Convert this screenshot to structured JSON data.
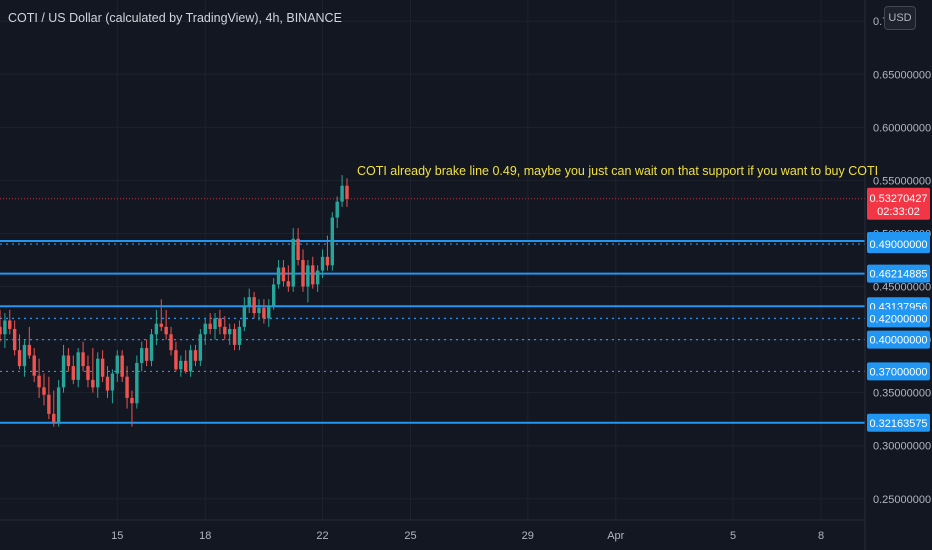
{
  "header": {
    "title": "COTI / US Dollar (calculated by TradingView), 4h, BINANCE",
    "currency": "USD"
  },
  "colors": {
    "background": "#131722",
    "up": "#26a69a",
    "down": "#ef5350",
    "level_line": "#2196f3",
    "note": "#f0e040",
    "grid": "#1e222d",
    "last_price": "#f23645"
  },
  "chart_data": {
    "type": "candlestick",
    "title": "COTI / US Dollar (calculated by TradingView), 4h, BINANCE",
    "yaxis_side": "right",
    "ylim": [
      0.23,
      0.72
    ],
    "y_ticks": [
      0.25,
      0.3,
      0.35,
      0.4,
      0.45,
      0.5,
      0.55,
      0.6,
      0.65,
      0.7
    ],
    "y_tick_labels": [
      "0.25000000",
      "0.30000000",
      "0.35000000",
      "0.40000000",
      "0.45000000",
      "0.50000000",
      "0.55000000",
      "0.60000000",
      "0.65000000",
      "0.7"
    ],
    "x_ticks": [
      {
        "date": "2021-03-15",
        "label": "15"
      },
      {
        "date": "2021-03-18",
        "label": "18"
      },
      {
        "date": "2021-03-22",
        "label": "22"
      },
      {
        "date": "2021-03-25",
        "label": "25"
      },
      {
        "date": "2021-03-29",
        "label": "29"
      },
      {
        "date": "2021-04-01",
        "label": "Apr"
      },
      {
        "date": "2021-04-05",
        "label": "5"
      },
      {
        "date": "2021-04-08",
        "label": "8"
      }
    ],
    "xlim": [
      "2021-03-11 00:00",
      "2021-04-09 12:00"
    ],
    "grid": true,
    "candles": [
      {
        "t": "2021-03-11 00:00",
        "o": 0.412,
        "h": 0.428,
        "l": 0.398,
        "c": 0.405
      },
      {
        "t": "2021-03-11 04:00",
        "o": 0.405,
        "h": 0.425,
        "l": 0.392,
        "c": 0.418
      },
      {
        "t": "2021-03-11 08:00",
        "o": 0.418,
        "h": 0.428,
        "l": 0.405,
        "c": 0.41
      },
      {
        "t": "2021-03-11 12:00",
        "o": 0.41,
        "h": 0.418,
        "l": 0.385,
        "c": 0.39
      },
      {
        "t": "2021-03-11 16:00",
        "o": 0.39,
        "h": 0.405,
        "l": 0.372,
        "c": 0.375
      },
      {
        "t": "2021-03-11 20:00",
        "o": 0.375,
        "h": 0.4,
        "l": 0.365,
        "c": 0.395
      },
      {
        "t": "2021-03-12 00:00",
        "o": 0.395,
        "h": 0.412,
        "l": 0.382,
        "c": 0.385
      },
      {
        "t": "2021-03-12 04:00",
        "o": 0.385,
        "h": 0.392,
        "l": 0.36,
        "c": 0.366
      },
      {
        "t": "2021-03-12 08:00",
        "o": 0.366,
        "h": 0.382,
        "l": 0.345,
        "c": 0.355
      },
      {
        "t": "2021-03-12 12:00",
        "o": 0.355,
        "h": 0.368,
        "l": 0.338,
        "c": 0.348
      },
      {
        "t": "2021-03-12 16:00",
        "o": 0.348,
        "h": 0.365,
        "l": 0.325,
        "c": 0.33
      },
      {
        "t": "2021-03-12 20:00",
        "o": 0.33,
        "h": 0.352,
        "l": 0.318,
        "c": 0.322
      },
      {
        "t": "2021-03-13 00:00",
        "o": 0.322,
        "h": 0.362,
        "l": 0.318,
        "c": 0.355
      },
      {
        "t": "2021-03-13 04:00",
        "o": 0.355,
        "h": 0.395,
        "l": 0.35,
        "c": 0.385
      },
      {
        "t": "2021-03-13 08:00",
        "o": 0.385,
        "h": 0.392,
        "l": 0.37,
        "c": 0.375
      },
      {
        "t": "2021-03-13 12:00",
        "o": 0.375,
        "h": 0.385,
        "l": 0.358,
        "c": 0.362
      },
      {
        "t": "2021-03-13 16:00",
        "o": 0.362,
        "h": 0.392,
        "l": 0.355,
        "c": 0.388
      },
      {
        "t": "2021-03-13 20:00",
        "o": 0.388,
        "h": 0.398,
        "l": 0.37,
        "c": 0.375
      },
      {
        "t": "2021-03-14 00:00",
        "o": 0.375,
        "h": 0.385,
        "l": 0.355,
        "c": 0.362
      },
      {
        "t": "2021-03-14 04:00",
        "o": 0.362,
        "h": 0.392,
        "l": 0.35,
        "c": 0.355
      },
      {
        "t": "2021-03-14 08:00",
        "o": 0.355,
        "h": 0.388,
        "l": 0.345,
        "c": 0.382
      },
      {
        "t": "2021-03-14 12:00",
        "o": 0.382,
        "h": 0.39,
        "l": 0.36,
        "c": 0.365
      },
      {
        "t": "2021-03-14 16:00",
        "o": 0.365,
        "h": 0.375,
        "l": 0.345,
        "c": 0.352
      },
      {
        "t": "2021-03-14 20:00",
        "o": 0.352,
        "h": 0.372,
        "l": 0.34,
        "c": 0.368
      },
      {
        "t": "2021-03-15 00:00",
        "o": 0.368,
        "h": 0.39,
        "l": 0.36,
        "c": 0.385
      },
      {
        "t": "2021-03-15 04:00",
        "o": 0.385,
        "h": 0.39,
        "l": 0.36,
        "c": 0.365
      },
      {
        "t": "2021-03-15 08:00",
        "o": 0.365,
        "h": 0.375,
        "l": 0.335,
        "c": 0.345
      },
      {
        "t": "2021-03-15 12:00",
        "o": 0.345,
        "h": 0.352,
        "l": 0.318,
        "c": 0.34
      },
      {
        "t": "2021-03-15 16:00",
        "o": 0.34,
        "h": 0.385,
        "l": 0.335,
        "c": 0.378
      },
      {
        "t": "2021-03-15 20:00",
        "o": 0.378,
        "h": 0.398,
        "l": 0.37,
        "c": 0.392
      },
      {
        "t": "2021-03-16 00:00",
        "o": 0.392,
        "h": 0.4,
        "l": 0.375,
        "c": 0.38
      },
      {
        "t": "2021-03-16 04:00",
        "o": 0.38,
        "h": 0.41,
        "l": 0.375,
        "c": 0.405
      },
      {
        "t": "2021-03-16 08:00",
        "o": 0.405,
        "h": 0.428,
        "l": 0.395,
        "c": 0.415
      },
      {
        "t": "2021-03-16 12:00",
        "o": 0.415,
        "h": 0.438,
        "l": 0.408,
        "c": 0.412
      },
      {
        "t": "2021-03-16 16:00",
        "o": 0.412,
        "h": 0.428,
        "l": 0.4,
        "c": 0.405
      },
      {
        "t": "2021-03-16 20:00",
        "o": 0.405,
        "h": 0.412,
        "l": 0.385,
        "c": 0.39
      },
      {
        "t": "2021-03-17 00:00",
        "o": 0.39,
        "h": 0.398,
        "l": 0.37,
        "c": 0.372
      },
      {
        "t": "2021-03-17 04:00",
        "o": 0.372,
        "h": 0.385,
        "l": 0.365,
        "c": 0.38
      },
      {
        "t": "2021-03-17 08:00",
        "o": 0.38,
        "h": 0.39,
        "l": 0.368,
        "c": 0.37
      },
      {
        "t": "2021-03-17 12:00",
        "o": 0.37,
        "h": 0.395,
        "l": 0.365,
        "c": 0.39
      },
      {
        "t": "2021-03-17 16:00",
        "o": 0.39,
        "h": 0.395,
        "l": 0.375,
        "c": 0.38
      },
      {
        "t": "2021-03-17 20:00",
        "o": 0.38,
        "h": 0.41,
        "l": 0.375,
        "c": 0.405
      },
      {
        "t": "2021-03-18 00:00",
        "o": 0.405,
        "h": 0.42,
        "l": 0.395,
        "c": 0.415
      },
      {
        "t": "2021-03-18 04:00",
        "o": 0.415,
        "h": 0.425,
        "l": 0.405,
        "c": 0.41
      },
      {
        "t": "2021-03-18 08:00",
        "o": 0.41,
        "h": 0.425,
        "l": 0.4,
        "c": 0.42
      },
      {
        "t": "2021-03-18 12:00",
        "o": 0.42,
        "h": 0.428,
        "l": 0.405,
        "c": 0.412
      },
      {
        "t": "2021-03-18 16:00",
        "o": 0.412,
        "h": 0.422,
        "l": 0.4,
        "c": 0.405
      },
      {
        "t": "2021-03-18 20:00",
        "o": 0.405,
        "h": 0.415,
        "l": 0.395,
        "c": 0.41
      },
      {
        "t": "2021-03-19 00:00",
        "o": 0.41,
        "h": 0.415,
        "l": 0.39,
        "c": 0.395
      },
      {
        "t": "2021-03-19 04:00",
        "o": 0.395,
        "h": 0.418,
        "l": 0.39,
        "c": 0.412
      },
      {
        "t": "2021-03-19 08:00",
        "o": 0.412,
        "h": 0.44,
        "l": 0.408,
        "c": 0.432
      },
      {
        "t": "2021-03-19 12:00",
        "o": 0.432,
        "h": 0.448,
        "l": 0.425,
        "c": 0.44
      },
      {
        "t": "2021-03-19 16:00",
        "o": 0.44,
        "h": 0.445,
        "l": 0.42,
        "c": 0.425
      },
      {
        "t": "2021-03-19 20:00",
        "o": 0.425,
        "h": 0.438,
        "l": 0.418,
        "c": 0.43
      },
      {
        "t": "2021-03-20 00:00",
        "o": 0.43,
        "h": 0.438,
        "l": 0.415,
        "c": 0.42
      },
      {
        "t": "2021-03-20 04:00",
        "o": 0.42,
        "h": 0.438,
        "l": 0.412,
        "c": 0.432
      },
      {
        "t": "2021-03-20 08:00",
        "o": 0.432,
        "h": 0.458,
        "l": 0.428,
        "c": 0.452
      },
      {
        "t": "2021-03-20 12:00",
        "o": 0.452,
        "h": 0.475,
        "l": 0.448,
        "c": 0.468
      },
      {
        "t": "2021-03-20 16:00",
        "o": 0.468,
        "h": 0.475,
        "l": 0.45,
        "c": 0.455
      },
      {
        "t": "2021-03-20 20:00",
        "o": 0.455,
        "h": 0.47,
        "l": 0.445,
        "c": 0.45
      },
      {
        "t": "2021-03-21 00:00",
        "o": 0.45,
        "h": 0.505,
        "l": 0.445,
        "c": 0.495
      },
      {
        "t": "2021-03-21 04:00",
        "o": 0.495,
        "h": 0.505,
        "l": 0.47,
        "c": 0.475
      },
      {
        "t": "2021-03-21 08:00",
        "o": 0.475,
        "h": 0.485,
        "l": 0.445,
        "c": 0.45
      },
      {
        "t": "2021-03-21 12:00",
        "o": 0.45,
        "h": 0.475,
        "l": 0.435,
        "c": 0.47
      },
      {
        "t": "2021-03-21 16:00",
        "o": 0.47,
        "h": 0.478,
        "l": 0.448,
        "c": 0.452
      },
      {
        "t": "2021-03-21 20:00",
        "o": 0.452,
        "h": 0.47,
        "l": 0.445,
        "c": 0.465
      },
      {
        "t": "2021-03-22 00:00",
        "o": 0.465,
        "h": 0.485,
        "l": 0.458,
        "c": 0.478
      },
      {
        "t": "2021-03-22 04:00",
        "o": 0.478,
        "h": 0.498,
        "l": 0.465,
        "c": 0.47
      },
      {
        "t": "2021-03-22 08:00",
        "o": 0.47,
        "h": 0.52,
        "l": 0.465,
        "c": 0.515
      },
      {
        "t": "2021-03-22 12:00",
        "o": 0.515,
        "h": 0.535,
        "l": 0.505,
        "c": 0.53
      },
      {
        "t": "2021-03-22 16:00",
        "o": 0.53,
        "h": 0.555,
        "l": 0.525,
        "c": 0.545
      },
      {
        "t": "2021-03-22 20:00",
        "o": 0.545,
        "h": 0.552,
        "l": 0.525,
        "c": 0.5327
      }
    ],
    "horizontal_lines": [
      {
        "value": 0.49291814,
        "label": "0.49291814",
        "style": "solid"
      },
      {
        "value": 0.49,
        "label": "0.49000000",
        "style": "dotted"
      },
      {
        "value": 0.46214885,
        "label": "0.46214885",
        "style": "solid"
      },
      {
        "value": 0.43137956,
        "label": "0.43137956",
        "style": "solid"
      },
      {
        "value": 0.42,
        "label": "0.42000000",
        "style": "dotted"
      },
      {
        "value": 0.4,
        "label": "0.40000000",
        "style": "dotted"
      },
      {
        "value": 0.37,
        "label": "0.37000000",
        "style": "dotted"
      },
      {
        "value": 0.32163575,
        "label": "0.32163575",
        "style": "solid"
      }
    ],
    "last_price": {
      "value": 0.53270427,
      "label": "0.53270427",
      "countdown": "02:33:02"
    },
    "annotation": {
      "text": "COTI already brake line 0.49, maybe you just can wait on that support if you want to buy COTI",
      "anchor_date": "2021-03-22 20:00",
      "anchor_value": 0.553
    }
  }
}
